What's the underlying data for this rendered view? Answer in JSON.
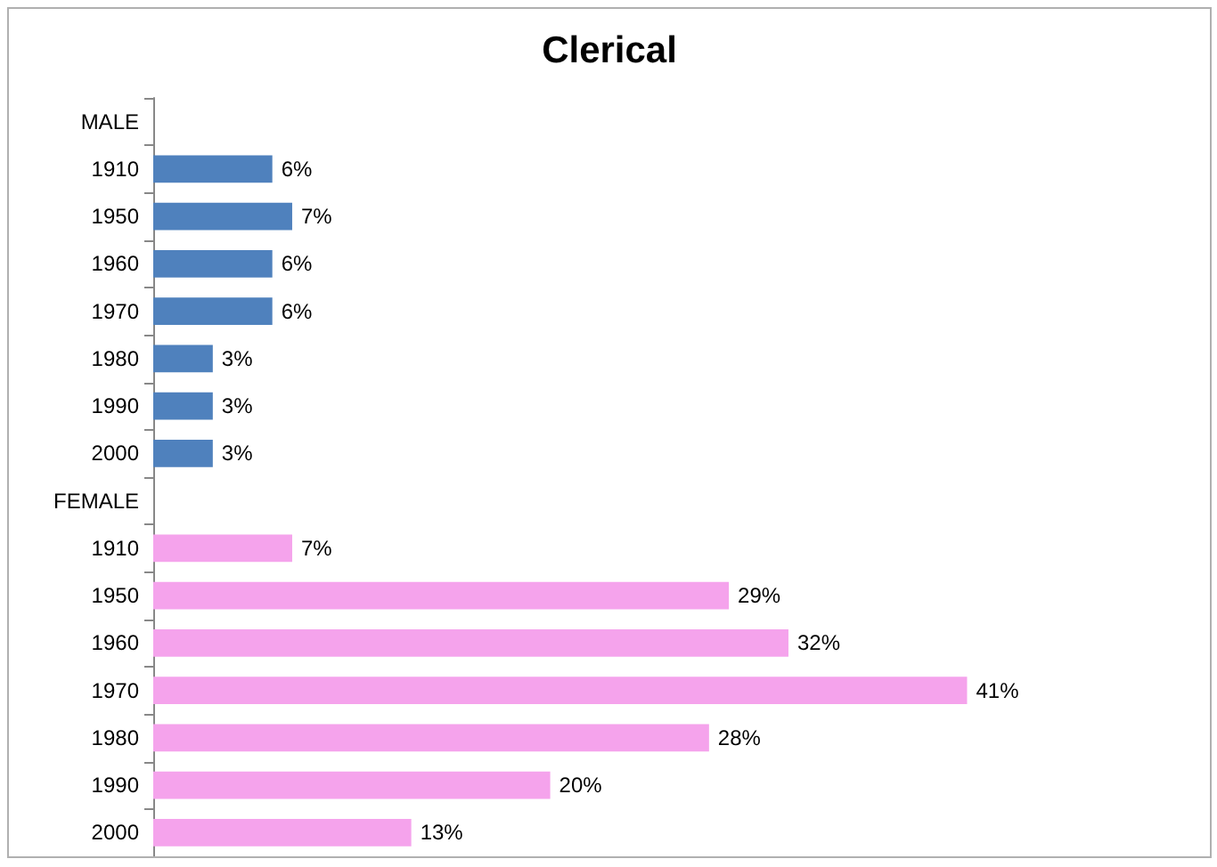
{
  "chart_data": {
    "type": "bar",
    "orientation": "horizontal",
    "title": "Clerical",
    "categories": [
      "MALE",
      "1910",
      "1950",
      "1960",
      "1970",
      "1980",
      "1990",
      "2000",
      "FEMALE",
      "1910",
      "1950",
      "1960",
      "1970",
      "1980",
      "1990",
      "2000"
    ],
    "values": [
      null,
      6,
      7,
      6,
      6,
      3,
      3,
      3,
      null,
      7,
      29,
      32,
      41,
      28,
      20,
      13
    ],
    "value_labels": [
      null,
      "6%",
      "7%",
      "6%",
      "6%",
      "3%",
      "3%",
      "3%",
      null,
      "7%",
      "29%",
      "32%",
      "41%",
      "28%",
      "20%",
      "13%"
    ],
    "colors": [
      null,
      "#4f81bd",
      "#4f81bd",
      "#4f81bd",
      "#4f81bd",
      "#4f81bd",
      "#4f81bd",
      "#4f81bd",
      null,
      "#f5a3ec",
      "#f5a3ec",
      "#f5a3ec",
      "#f5a3ec",
      "#f5a3ec",
      "#f5a3ec",
      "#f5a3ec"
    ]
  }
}
